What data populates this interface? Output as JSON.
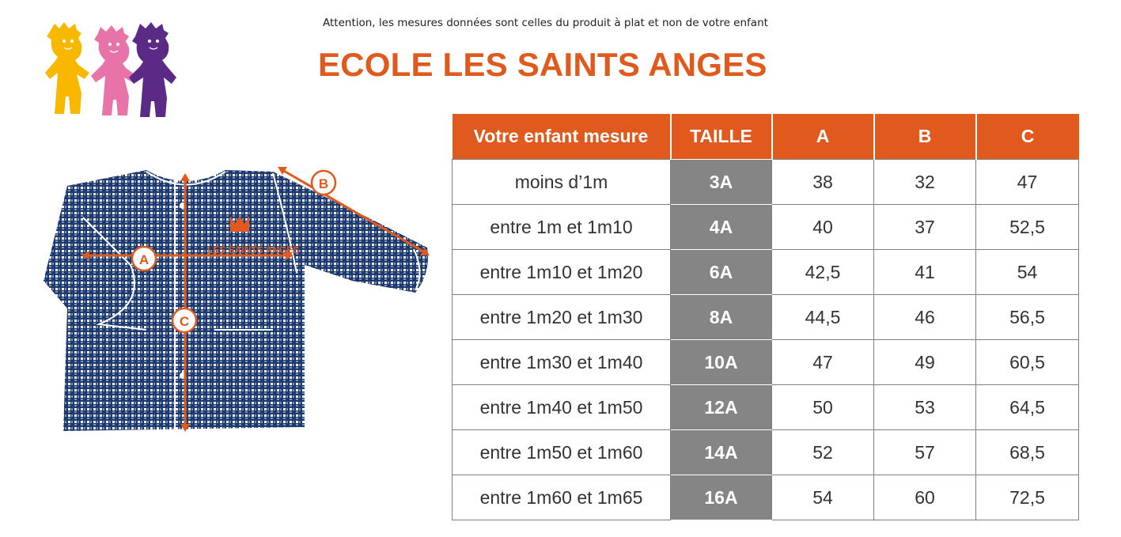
{
  "header": {
    "notice": "Attention, les mesures données sont celles du produit à plat et non de votre enfant",
    "title": "ECOLE LES SAINTS ANGES"
  },
  "logo": {
    "icon": "three-children-logo",
    "colors": [
      "#f9b800",
      "#e873a8",
      "#5b2a86"
    ]
  },
  "garment": {
    "icon": "gingham-smock-illustration",
    "fabric_color": "#1c3a6e",
    "accent_color": "#e05a1e",
    "embroidery_text": "LES SAINTS ANGES",
    "markers": [
      "A",
      "B",
      "C"
    ]
  },
  "table": {
    "headers": [
      "Votre enfant mesure",
      "TAILLE",
      "A",
      "B",
      "C"
    ],
    "rows": [
      {
        "mesure": "moins d’1m",
        "taille": "3A",
        "a": "38",
        "b": "32",
        "c": "47"
      },
      {
        "mesure": "entre 1m et 1m10",
        "taille": "4A",
        "a": "40",
        "b": "37",
        "c": "52,5"
      },
      {
        "mesure": "entre 1m10 et 1m20",
        "taille": "6A",
        "a": "42,5",
        "b": "41",
        "c": "54"
      },
      {
        "mesure": "entre 1m20 et 1m30",
        "taille": "8A",
        "a": "44,5",
        "b": "46",
        "c": "56,5"
      },
      {
        "mesure": "entre 1m30 et 1m40",
        "taille": "10A",
        "a": "47",
        "b": "49",
        "c": "60,5"
      },
      {
        "mesure": "entre 1m40 et 1m50",
        "taille": "12A",
        "a": "50",
        "b": "53",
        "c": "64,5"
      },
      {
        "mesure": "entre 1m50 et 1m60",
        "taille": "14A",
        "a": "52",
        "b": "57",
        "c": "68,5"
      },
      {
        "mesure": "entre 1m60 et 1m65",
        "taille": "16A",
        "a": "54",
        "b": "60",
        "c": "72,5"
      }
    ],
    "header_color": "#e05a1e",
    "taille_color": "#858585"
  }
}
